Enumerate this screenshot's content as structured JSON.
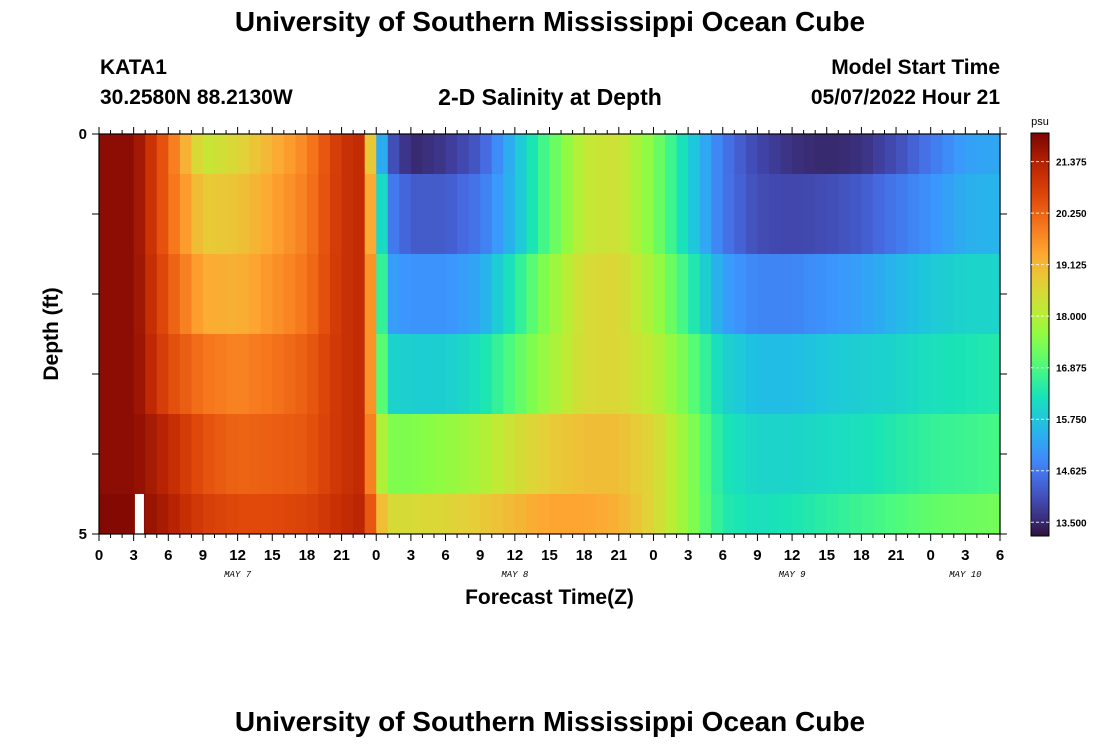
{
  "header": {
    "title": "University of Southern Mississippi Ocean Cube",
    "station": "KATA1",
    "coords": "30.2580N  88.2130W",
    "plot_title": "2-D Salinity at Depth",
    "model_start_label": "Model Start Time",
    "model_start_value": "05/07/2022 Hour 21"
  },
  "footer": {
    "title": "University of Southern Mississippi Ocean Cube"
  },
  "chart_data": {
    "type": "heatmap",
    "title": "2-D Salinity at Depth",
    "xlabel": "Forecast Time(Z)",
    "ylabel": "Depth (ft)",
    "x_hours": [
      0,
      1,
      2,
      3,
      4,
      5,
      6,
      7,
      8,
      9,
      10,
      11,
      12,
      13,
      14,
      15,
      16,
      17,
      18,
      19,
      20,
      21,
      22,
      23,
      24,
      25,
      26,
      27,
      28,
      29,
      30,
      31,
      32,
      33,
      34,
      35,
      36,
      37,
      38,
      39,
      40,
      41,
      42,
      43,
      44,
      45,
      46,
      47,
      48,
      49,
      50,
      51,
      52,
      53,
      54,
      55,
      56,
      57,
      58,
      59,
      60,
      61,
      62,
      63,
      64,
      65,
      66,
      67,
      68,
      69,
      70,
      71,
      72,
      73,
      74,
      75,
      76,
      77,
      78
    ],
    "x_start": "2022-05-07 00Z",
    "x_range_hours": [
      0,
      78
    ],
    "x_tick_labels": [
      "0",
      "3",
      "6",
      "9",
      "12",
      "15",
      "18",
      "21",
      "0",
      "3",
      "6",
      "9",
      "12",
      "15",
      "18",
      "21",
      "0",
      "3",
      "6",
      "9",
      "12",
      "15",
      "18",
      "21",
      "0",
      "3",
      "6"
    ],
    "day_labels": [
      {
        "label": "MAY 7",
        "hour": 12
      },
      {
        "label": "MAY 8",
        "hour": 36
      },
      {
        "label": "MAY 9",
        "hour": 60
      },
      {
        "label": "MAY 10",
        "hour": 75
      }
    ],
    "y_depth_ft": [
      0,
      1,
      2,
      3,
      4,
      5
    ],
    "y_range": [
      0,
      5
    ],
    "y_tick_labels": [
      "0",
      "5"
    ],
    "grid": false,
    "colorbar": {
      "unit": "psu",
      "min": 13.2,
      "max": 22.0,
      "ticks": [
        "21.375",
        "20.250",
        "19.125",
        "18.000",
        "16.875",
        "15.750",
        "14.625",
        "13.500"
      ],
      "tick_values": [
        21.375,
        20.25,
        19.125,
        18.0,
        16.875,
        15.75,
        14.625,
        13.5
      ],
      "colormap": "turbo"
    },
    "layer_anchors": [
      {
        "hours": [
          0,
          3,
          6,
          9,
          12,
          15,
          18,
          21,
          23,
          24,
          25,
          27,
          30,
          33,
          36,
          39,
          42,
          45,
          48,
          51,
          54,
          57,
          60,
          63,
          66,
          69,
          72,
          75,
          78
        ],
        "values": [
          21.8,
          21.8,
          20.2,
          18.2,
          18.6,
          19.2,
          19.8,
          21.0,
          21.2,
          16.5,
          14.2,
          13.5,
          13.7,
          14.2,
          15.6,
          17.0,
          18.2,
          18.4,
          17.4,
          16.0,
          14.6,
          13.9,
          13.6,
          13.5,
          13.6,
          14.0,
          14.6,
          15.2,
          15.3
        ]
      },
      {
        "hours": [
          0,
          3,
          6,
          9,
          12,
          15,
          18,
          21,
          23,
          24,
          25,
          27,
          30,
          33,
          36,
          39,
          42,
          45,
          48,
          51,
          54,
          57,
          60,
          63,
          66,
          69,
          72,
          75,
          78
        ],
        "values": [
          21.8,
          21.8,
          20.2,
          18.8,
          18.9,
          19.4,
          19.9,
          21.0,
          21.2,
          17.4,
          14.8,
          14.2,
          14.2,
          14.6,
          15.6,
          17.0,
          18.2,
          18.4,
          17.4,
          16.0,
          14.6,
          14.0,
          13.9,
          14.0,
          14.2,
          14.6,
          15.0,
          15.4,
          15.5
        ]
      },
      {
        "hours": [
          0,
          3,
          6,
          9,
          12,
          15,
          18,
          21,
          23,
          24,
          25,
          27,
          30,
          33,
          36,
          39,
          42,
          45,
          48,
          51,
          54,
          57,
          60,
          63,
          66,
          69,
          72,
          75,
          78
        ],
        "values": [
          21.8,
          21.8,
          20.4,
          19.3,
          19.2,
          19.6,
          20.0,
          21.0,
          21.2,
          18.0,
          15.2,
          15.0,
          15.0,
          15.3,
          16.4,
          17.6,
          18.5,
          18.6,
          17.8,
          16.6,
          15.2,
          14.8,
          14.8,
          15.0,
          15.2,
          15.5,
          15.8,
          16.0,
          16.0
        ]
      },
      {
        "hours": [
          0,
          3,
          6,
          9,
          12,
          15,
          18,
          21,
          23,
          24,
          25,
          27,
          30,
          33,
          36,
          39,
          42,
          45,
          48,
          51,
          54,
          57,
          60,
          63,
          66,
          69,
          72,
          75,
          78
        ],
        "values": [
          21.8,
          21.8,
          20.6,
          20.0,
          19.8,
          20.0,
          20.3,
          21.0,
          21.2,
          18.0,
          16.0,
          15.9,
          15.9,
          16.2,
          17.0,
          17.8,
          18.5,
          18.6,
          18.1,
          17.2,
          16.0,
          15.6,
          15.6,
          15.8,
          15.9,
          16.0,
          16.2,
          16.3,
          16.4
        ]
      },
      {
        "hours": [
          0,
          3,
          6,
          9,
          12,
          15,
          18,
          21,
          23,
          24,
          25,
          27,
          30,
          33,
          36,
          39,
          42,
          45,
          48,
          51,
          54,
          57,
          60,
          63,
          66,
          69,
          72,
          75,
          78
        ],
        "values": [
          21.8,
          21.8,
          21.2,
          20.5,
          20.2,
          20.3,
          20.4,
          21.0,
          21.2,
          18.5,
          17.4,
          17.4,
          17.6,
          17.9,
          18.4,
          18.8,
          19.0,
          19.0,
          18.6,
          17.6,
          16.3,
          16.0,
          16.0,
          16.1,
          16.2,
          16.4,
          16.6,
          16.7,
          16.8
        ]
      },
      {
        "hours": [
          0,
          3,
          6,
          9,
          12,
          15,
          18,
          21,
          23,
          24,
          25,
          27,
          30,
          33,
          36,
          39,
          42,
          45,
          48,
          51,
          54,
          57,
          60,
          63,
          66,
          69,
          72,
          75,
          78
        ],
        "values": [
          21.9,
          21.9,
          21.4,
          20.8,
          20.6,
          20.6,
          20.7,
          21.1,
          21.3,
          19.5,
          18.5,
          18.5,
          18.6,
          18.8,
          19.1,
          19.4,
          19.4,
          19.2,
          18.6,
          17.6,
          16.4,
          16.2,
          16.3,
          16.5,
          16.7,
          16.9,
          17.1,
          17.2,
          17.3
        ]
      }
    ],
    "gap_marker": {
      "hour": 3.5,
      "depth_range": [
        4,
        5
      ],
      "color": "#ffffff"
    }
  }
}
